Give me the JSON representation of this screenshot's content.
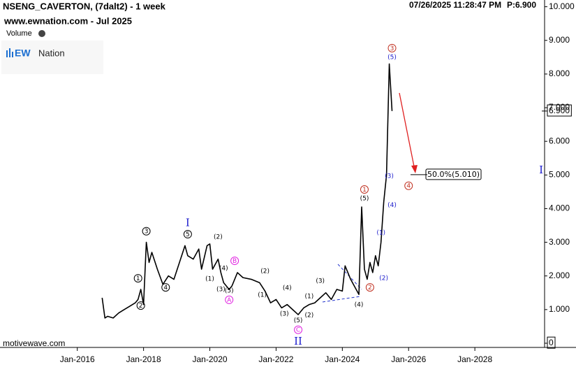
{
  "chart_data": {
    "type": "line",
    "title": "NSENG_CAVERTON, (7dalt2) - 1 week",
    "subtitle": "www.ewnation.com  - Jul 2025",
    "volume_label": "Volume",
    "logo_mark": "EW",
    "logo_text": "Nation",
    "timestamp": "07/26/2025 11:28:47 PM",
    "price_text": "P:6.900",
    "footer": "motivewave.com",
    "x": [
      "2016-10",
      "2016-11",
      "2016-12",
      "2017-02",
      "2017-04",
      "2017-06",
      "2017-08",
      "2017-10",
      "2017-11",
      "2017-12",
      "2018-01",
      "2018-02",
      "2018-03",
      "2018-04",
      "2018-06",
      "2018-08",
      "2018-10",
      "2018-12",
      "2019-02",
      "2019-04",
      "2019-05",
      "2019-07",
      "2019-09",
      "2019-10",
      "2019-12",
      "2020-01",
      "2020-02",
      "2020-04",
      "2020-05",
      "2020-06",
      "2020-08",
      "2020-09",
      "2020-11",
      "2021-01",
      "2021-04",
      "2021-07",
      "2021-09",
      "2021-11",
      "2022-01",
      "2022-03",
      "2022-05",
      "2022-07",
      "2022-09",
      "2022-11",
      "2023-01",
      "2023-03",
      "2023-05",
      "2023-07",
      "2023-09",
      "2023-11",
      "2024-01",
      "2024-02",
      "2024-04",
      "2024-06",
      "2024-07",
      "2024-08",
      "2024-09",
      "2024-10",
      "2024-11",
      "2024-12",
      "2025-01",
      "2025-02",
      "2025-03",
      "2025-04",
      "2025-05",
      "2025-06",
      "2025-07"
    ],
    "series": [
      {
        "name": "NSENG_CAVERTON",
        "color": "#000000",
        "values": [
          1.35,
          0.75,
          0.8,
          0.75,
          0.9,
          1.0,
          1.1,
          1.2,
          1.3,
          1.6,
          1.15,
          3.0,
          2.4,
          2.7,
          2.2,
          1.75,
          2.0,
          1.9,
          2.4,
          2.9,
          2.6,
          2.5,
          2.8,
          2.2,
          2.9,
          2.95,
          2.2,
          2.5,
          2.1,
          1.8,
          1.6,
          1.7,
          2.1,
          1.95,
          1.9,
          1.8,
          1.55,
          1.2,
          1.3,
          1.05,
          1.15,
          1.0,
          0.85,
          1.05,
          1.15,
          1.2,
          1.35,
          1.5,
          1.3,
          1.6,
          1.55,
          2.3,
          1.9,
          1.6,
          1.45,
          4.05,
          2.2,
          1.9,
          2.4,
          2.1,
          2.6,
          2.3,
          3.0,
          4.2,
          5.0,
          8.3,
          6.9
        ]
      }
    ],
    "xlim": [
      "2013-09",
      "2030-02"
    ],
    "xticks": [
      {
        "value": "2016-01",
        "label": "Jan-2016"
      },
      {
        "value": "2018-01",
        "label": "Jan-2018"
      },
      {
        "value": "2020-01",
        "label": "Jan-2020"
      },
      {
        "value": "2022-01",
        "label": "Jan-2022"
      },
      {
        "value": "2024-01",
        "label": "Jan-2024"
      },
      {
        "value": "2026-01",
        "label": "Jan-2026"
      },
      {
        "value": "2028-01",
        "label": "Jan-2028"
      }
    ],
    "ylim": [
      0,
      10.2
    ],
    "yticks": [
      0,
      {
        "value": 1,
        "label": "1.000"
      },
      {
        "value": 2,
        "label": "2.000"
      },
      {
        "value": 3,
        "label": "3.000"
      },
      {
        "value": 4,
        "label": "4.000"
      },
      {
        "value": 5,
        "label": "5.000"
      },
      {
        "value": 6,
        "label": "6.000"
      },
      {
        "value": 7,
        "label": "7.000"
      },
      {
        "value": 8,
        "label": "8.000"
      },
      {
        "value": 9,
        "label": "9.000"
      },
      {
        "value": 10,
        "label": "10.000"
      }
    ],
    "last_price": {
      "value": 6.9,
      "label": "6.900"
    },
    "fib_level": {
      "value": 5.01,
      "label": "50.0%(5.010)"
    },
    "annotations": [
      {
        "text": "1",
        "x": "2017-11",
        "y": 1.93,
        "shape": "circle",
        "color": "#000000"
      },
      {
        "text": "2",
        "x": "2017-12",
        "y": 1.12,
        "shape": "circle",
        "color": "#000000"
      },
      {
        "text": "3",
        "x": "2018-02",
        "y": 3.33,
        "shape": "circle",
        "color": "#000000"
      },
      {
        "text": "4",
        "x": "2018-09",
        "y": 1.66,
        "shape": "circle",
        "color": "#000000"
      },
      {
        "text": "5",
        "x": "2019-05",
        "y": 3.24,
        "shape": "circle",
        "color": "#000000"
      },
      {
        "text": "I",
        "x": "2019-05",
        "y": 3.56,
        "shape": "roman",
        "color": "#1a1acc"
      },
      {
        "text": "(2)",
        "x": "2020-04",
        "y": 3.16,
        "shape": "plain",
        "color": "#000000"
      },
      {
        "text": "(1)",
        "x": "2020-01",
        "y": 1.91,
        "shape": "plain",
        "color": "#000000"
      },
      {
        "text": "(4)",
        "x": "2020-06",
        "y": 2.22,
        "shape": "plain",
        "color": "#000000"
      },
      {
        "text": "(3)",
        "x": "2020-05",
        "y": 1.6,
        "shape": "plain",
        "color": "#000000"
      },
      {
        "text": "(5)",
        "x": "2020-08",
        "y": 1.56,
        "shape": "plain",
        "color": "#000000"
      },
      {
        "text": "B",
        "x": "2020-10",
        "y": 2.45,
        "shape": "circle",
        "color": "#e020e0"
      },
      {
        "text": "A",
        "x": "2020-08",
        "y": 1.29,
        "shape": "circle",
        "color": "#e020e0"
      },
      {
        "text": "(2)",
        "x": "2021-09",
        "y": 2.14,
        "shape": "plain",
        "color": "#000000"
      },
      {
        "text": "(1)",
        "x": "2021-08",
        "y": 1.43,
        "shape": "plain",
        "color": "#000000"
      },
      {
        "text": "(4)",
        "x": "2022-05",
        "y": 1.64,
        "shape": "plain",
        "color": "#000000"
      },
      {
        "text": "(3)",
        "x": "2022-04",
        "y": 0.87,
        "shape": "plain",
        "color": "#000000"
      },
      {
        "text": "(5)",
        "x": "2022-09",
        "y": 0.67,
        "shape": "plain",
        "color": "#000000"
      },
      {
        "text": "C",
        "x": "2022-09",
        "y": 0.4,
        "shape": "circle",
        "color": "#e020e0"
      },
      {
        "text": "II",
        "x": "2022-09",
        "y": 0.04,
        "shape": "roman",
        "color": "#1a1acc"
      },
      {
        "text": "(2)",
        "x": "2023-01",
        "y": 0.83,
        "shape": "plain",
        "color": "#000000"
      },
      {
        "text": "(1)",
        "x": "2023-01",
        "y": 1.39,
        "shape": "plain",
        "color": "#000000"
      },
      {
        "text": "(3)",
        "x": "2023-05",
        "y": 1.85,
        "shape": "plain",
        "color": "#000000"
      },
      {
        "text": "(4)",
        "x": "2024-07",
        "y": 1.14,
        "shape": "plain",
        "color": "#000000"
      },
      {
        "text": "(5)",
        "x": "2024-09",
        "y": 4.3,
        "shape": "plain",
        "color": "#000000"
      },
      {
        "text": "1",
        "x": "2024-09",
        "y": 4.57,
        "shape": "circle",
        "color": "#c03020"
      },
      {
        "text": "2",
        "x": "2024-11",
        "y": 1.66,
        "shape": "circle",
        "color": "#c03020"
      },
      {
        "text": "(2)",
        "x": "2025-04",
        "y": 1.93,
        "shape": "plain",
        "color": "#1a1acc"
      },
      {
        "text": "(1)",
        "x": "2025-03",
        "y": 3.28,
        "shape": "plain",
        "color": "#1a1acc"
      },
      {
        "text": "(4)",
        "x": "2025-07",
        "y": 4.1,
        "shape": "plain",
        "color": "#1a1acc"
      },
      {
        "text": "(3)",
        "x": "2025-06",
        "y": 4.97,
        "shape": "plain",
        "color": "#1a1acc"
      },
      {
        "text": "(5)",
        "x": "2025-07",
        "y": 8.5,
        "shape": "plain",
        "color": "#1a1acc"
      },
      {
        "text": "3",
        "x": "2025-07",
        "y": 8.77,
        "shape": "circle",
        "color": "#c03020"
      },
      {
        "text": "4",
        "x": "2026-01",
        "y": 4.68,
        "shape": "circle",
        "color": "#c03020"
      },
      {
        "text": "I",
        "x": "2030-01",
        "y": 5.13,
        "shape": "roman",
        "color": "#1a1acc"
      }
    ]
  }
}
